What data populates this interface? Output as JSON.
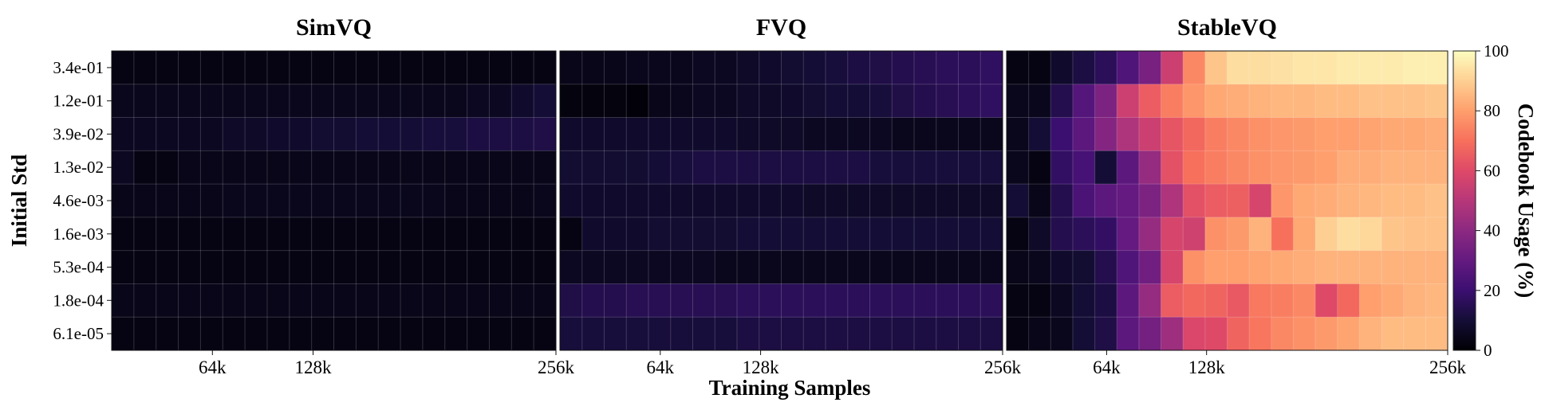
{
  "chart_data": {
    "type": "heatmap",
    "xlabel": "Training Samples",
    "ylabel": "Initial Std",
    "y_tick_labels": [
      "3.4e-01",
      "1.2e-01",
      "3.9e-02",
      "1.3e-02",
      "4.6e-03",
      "1.6e-03",
      "5.3e-04",
      "1.8e-04",
      "6.1e-05"
    ],
    "x_tick_labels": [
      "64k",
      "128k",
      "256k"
    ],
    "colorbar": {
      "label": "Codebook Usage (%)",
      "range": [
        0,
        100
      ],
      "ticks": [
        "0",
        "20",
        "40",
        "60",
        "80",
        "100"
      ],
      "colormap": "magma"
    },
    "panels": [
      {
        "title": "SimVQ",
        "values": [
          [
            3,
            3,
            3,
            3,
            3,
            3,
            3,
            3,
            3,
            3,
            3,
            3,
            3,
            3,
            3,
            3,
            3,
            3,
            3,
            3
          ],
          [
            5,
            5,
            5,
            5,
            5,
            5,
            5,
            5,
            5,
            5,
            5,
            5,
            5,
            5,
            5,
            5,
            6,
            6,
            8,
            10
          ],
          [
            6,
            6,
            6,
            6,
            6,
            7,
            7,
            8,
            8,
            9,
            9,
            10,
            10,
            10,
            11,
            11,
            12,
            12,
            12,
            13
          ],
          [
            6,
            3,
            3,
            4,
            4,
            4,
            4,
            4,
            4,
            4,
            4,
            4,
            4,
            4,
            4,
            4,
            4,
            4,
            4,
            4
          ],
          [
            4,
            4,
            4,
            4,
            4,
            5,
            5,
            5,
            5,
            5,
            5,
            5,
            5,
            5,
            5,
            4,
            4,
            4,
            4,
            5
          ],
          [
            3,
            3,
            3,
            3,
            3,
            3,
            3,
            3,
            3,
            3,
            3,
            3,
            3,
            3,
            3,
            3,
            3,
            3,
            3,
            3
          ],
          [
            3,
            3,
            3,
            3,
            3,
            3,
            3,
            3,
            3,
            3,
            3,
            3,
            3,
            3,
            3,
            3,
            3,
            3,
            3,
            3
          ],
          [
            4,
            4,
            4,
            4,
            4,
            4,
            4,
            4,
            4,
            4,
            4,
            4,
            4,
            4,
            4,
            4,
            4,
            4,
            4,
            4
          ],
          [
            3,
            3,
            3,
            3,
            3,
            3,
            3,
            3,
            3,
            3,
            3,
            3,
            3,
            3,
            3,
            3,
            3,
            3,
            3,
            3
          ]
        ]
      },
      {
        "title": "FVQ",
        "values": [
          [
            4,
            4,
            4,
            5,
            5,
            5,
            6,
            6,
            7,
            8,
            9,
            10,
            11,
            12,
            13,
            14,
            15,
            16,
            16,
            17
          ],
          [
            2,
            2,
            2,
            1,
            4,
            5,
            6,
            6,
            7,
            7,
            8,
            9,
            10,
            10,
            11,
            13,
            14,
            15,
            16,
            17
          ],
          [
            8,
            8,
            8,
            8,
            8,
            8,
            8,
            8,
            7,
            7,
            7,
            6,
            6,
            6,
            6,
            5,
            5,
            5,
            5,
            5
          ],
          [
            9,
            9,
            9,
            9,
            10,
            11,
            12,
            12,
            12,
            12,
            12,
            12,
            12,
            12,
            11,
            11,
            11,
            11,
            11,
            11
          ],
          [
            8,
            8,
            8,
            8,
            8,
            8,
            8,
            8,
            8,
            8,
            8,
            7,
            7,
            7,
            7,
            7,
            7,
            7,
            7,
            7
          ],
          [
            3,
            8,
            8,
            8,
            9,
            9,
            9,
            9,
            10,
            10,
            10,
            10,
            10,
            10,
            10,
            10,
            10,
            10,
            10,
            10
          ],
          [
            6,
            6,
            6,
            6,
            6,
            6,
            6,
            5,
            5,
            5,
            5,
            5,
            5,
            5,
            5,
            5,
            5,
            5,
            5,
            5
          ],
          [
            13,
            14,
            14,
            15,
            15,
            15,
            15,
            15,
            16,
            16,
            16,
            16,
            16,
            16,
            16,
            16,
            16,
            16,
            16,
            16
          ],
          [
            11,
            11,
            11,
            11,
            11,
            11,
            11,
            11,
            12,
            12,
            12,
            12,
            12,
            12,
            12,
            12,
            12,
            12,
            12,
            12
          ]
        ]
      },
      {
        "title": "StableVQ",
        "values": [
          [
            3,
            3,
            8,
            12,
            16,
            25,
            35,
            55,
            75,
            88,
            93,
            93,
            94,
            95,
            95,
            96,
            96,
            96,
            97,
            97
          ],
          [
            5,
            5,
            14,
            26,
            36,
            55,
            65,
            73,
            78,
            82,
            83,
            84,
            85,
            85,
            86,
            86,
            87,
            87,
            87,
            88
          ],
          [
            5,
            10,
            20,
            28,
            38,
            48,
            55,
            63,
            68,
            73,
            75,
            77,
            78,
            79,
            80,
            80,
            81,
            82,
            82,
            83
          ],
          [
            5,
            3,
            18,
            23,
            10,
            28,
            42,
            62,
            70,
            73,
            75,
            77,
            78,
            79,
            80,
            83,
            83,
            84,
            84,
            84
          ],
          [
            10,
            4,
            14,
            24,
            28,
            30,
            36,
            48,
            62,
            65,
            66,
            58,
            78,
            82,
            83,
            84,
            85,
            86,
            86,
            87
          ],
          [
            3,
            7,
            14,
            16,
            18,
            30,
            42,
            58,
            56,
            77,
            79,
            84,
            70,
            82,
            90,
            93,
            92,
            88,
            87,
            87
          ],
          [
            4,
            5,
            8,
            9,
            14,
            25,
            33,
            58,
            77,
            80,
            80,
            81,
            82,
            83,
            84,
            84,
            84,
            84,
            84,
            84
          ],
          [
            3,
            3,
            6,
            10,
            12,
            28,
            42,
            65,
            68,
            67,
            64,
            72,
            73,
            75,
            60,
            68,
            80,
            82,
            84,
            85
          ],
          [
            3,
            4,
            5,
            10,
            13,
            28,
            34,
            44,
            59,
            60,
            67,
            71,
            75,
            77,
            79,
            81,
            84,
            86,
            86,
            86
          ]
        ]
      }
    ]
  }
}
